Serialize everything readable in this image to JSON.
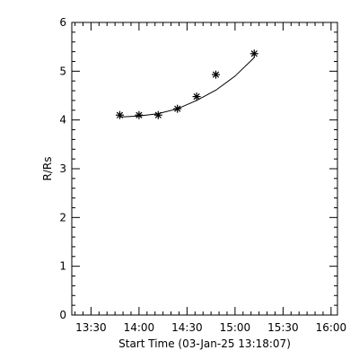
{
  "chart_data": {
    "type": "scatter",
    "xlabel": "Start Time (03-Jan-25 13:18:07)",
    "ylabel": "R/Rs",
    "xlim": [
      "13:18",
      "16:04"
    ],
    "ylim": [
      0,
      6
    ],
    "x_ticks": [
      "13:30",
      "14:00",
      "14:30",
      "15:00",
      "15:30",
      "16:00"
    ],
    "y_ticks": [
      "0",
      "1",
      "2",
      "3",
      "4",
      "5",
      "6"
    ],
    "grid": false,
    "marker": "asterisk",
    "series": [
      {
        "x": [
          "13:48",
          "14:00",
          "14:12",
          "14:24",
          "14:36",
          "14:48",
          "15:12"
        ],
        "y": [
          4.1,
          4.1,
          4.1,
          4.23,
          4.48,
          4.93,
          5.36
        ]
      }
    ],
    "fit": {
      "x": [
        "13:48",
        "14:00",
        "14:12",
        "14:24",
        "14:36",
        "14:48",
        "15:00",
        "15:12"
      ],
      "y": [
        4.06,
        4.08,
        4.13,
        4.23,
        4.4,
        4.61,
        4.9,
        5.28
      ]
    }
  }
}
